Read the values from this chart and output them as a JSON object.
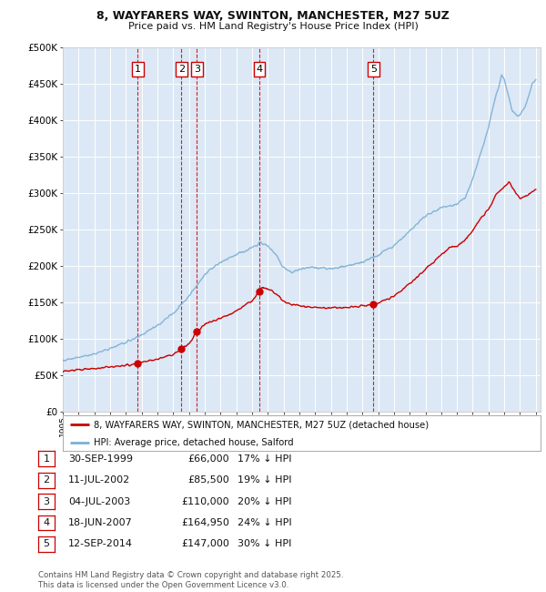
{
  "title_line1": "8, WAYFARERS WAY, SWINTON, MANCHESTER, M27 5UZ",
  "title_line2": "Price paid vs. HM Land Registry's House Price Index (HPI)",
  "legend_line1": "8, WAYFARERS WAY, SWINTON, MANCHESTER, M27 5UZ (detached house)",
  "legend_line2": "HPI: Average price, detached house, Salford",
  "sale_color": "#cc0000",
  "hpi_color": "#7bafd4",
  "vline_color": "#cc0000",
  "footer": "Contains HM Land Registry data © Crown copyright and database right 2025.\nThis data is licensed under the Open Government Licence v3.0.",
  "sales": [
    {
      "label": "1",
      "date_x": 1999.75,
      "price": 66000,
      "date_str": "30-SEP-1999",
      "price_str": "£66,000",
      "pct": "17% ↓ HPI"
    },
    {
      "label": "2",
      "date_x": 2002.53,
      "price": 85500,
      "date_str": "11-JUL-2002",
      "price_str": "£85,500",
      "pct": "19% ↓ HPI"
    },
    {
      "label": "3",
      "date_x": 2003.5,
      "price": 110000,
      "date_str": "04-JUL-2003",
      "price_str": "£110,000",
      "pct": "20% ↓ HPI"
    },
    {
      "label": "4",
      "date_x": 2007.46,
      "price": 164950,
      "date_str": "18-JUN-2007",
      "price_str": "£164,950",
      "pct": "24% ↓ HPI"
    },
    {
      "label": "5",
      "date_x": 2014.7,
      "price": 147000,
      "date_str": "12-SEP-2014",
      "price_str": "£147,000",
      "pct": "30% ↓ HPI"
    }
  ],
  "ylim": [
    0,
    500000
  ],
  "yticks": [
    0,
    50000,
    100000,
    150000,
    200000,
    250000,
    300000,
    350000,
    400000,
    450000,
    500000
  ],
  "xmin": 1995.0,
  "xmax": 2025.3,
  "background_color": "#dce8f5",
  "annotation_box_edge": "#cc0000"
}
